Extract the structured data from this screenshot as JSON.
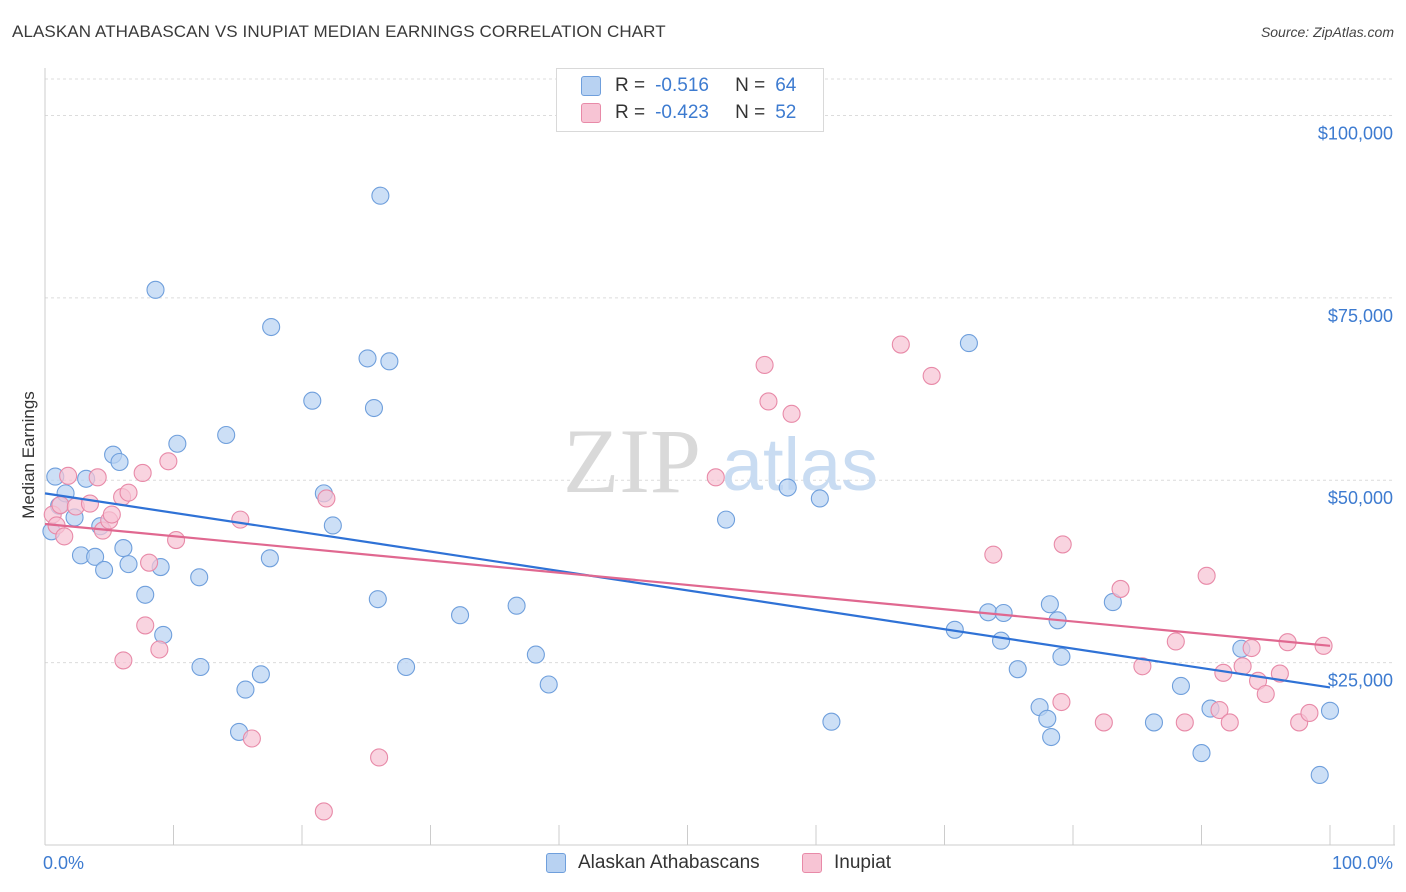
{
  "title": "ALASKAN ATHABASCAN VS INUPIAT MEDIAN EARNINGS CORRELATION CHART",
  "source": "Source: ZipAtlas.com",
  "watermark": {
    "zip": "ZIP",
    "atlas": "atlas"
  },
  "legend": {
    "series1": {
      "r_label": "R =",
      "r_value": "-0.516",
      "n_label": "N =",
      "n_value": "64"
    },
    "series2": {
      "r_label": "R =",
      "r_value": "-0.423",
      "n_label": "N =",
      "n_value": "52"
    }
  },
  "bottom_legend": {
    "series1": "Alaskan Athabascans",
    "series2": "Inupiat"
  },
  "colors": {
    "blue_fill": "#b8d2f2",
    "blue_edge": "#6f9fdc",
    "blue_line": "#2f72d6",
    "pink_fill": "#f7c4d4",
    "pink_edge": "#e88aa8",
    "pink_line": "#e06890",
    "accent_text": "#3d7bd0"
  },
  "chart_data": {
    "type": "scatter",
    "title": "ALASKAN ATHABASCAN VS INUPIAT MEDIAN EARNINGS CORRELATION CHART",
    "xlabel": "",
    "ylabel": "Median Earnings",
    "xlim": [
      0,
      100
    ],
    "ylim": [
      0,
      105000
    ],
    "x_tick_labels": [
      "0.0%",
      "100.0%"
    ],
    "y_ticks": [
      25000,
      50000,
      75000,
      100000
    ],
    "y_tick_labels": [
      "$25,000",
      "$50,000",
      "$75,000",
      "$100,000"
    ],
    "series": [
      {
        "name": "Alaskan Athabascans",
        "r": -0.516,
        "n": 64,
        "trend": {
          "x": [
            0,
            100
          ],
          "y": [
            48200,
            21600
          ]
        },
        "points": [
          [
            0.5,
            43000
          ],
          [
            0.8,
            50500
          ],
          [
            1.1,
            46500
          ],
          [
            1.6,
            48200
          ],
          [
            2.3,
            44900
          ],
          [
            2.8,
            39700
          ],
          [
            3.2,
            50200
          ],
          [
            3.9,
            39500
          ],
          [
            4.3,
            43700
          ],
          [
            4.6,
            37700
          ],
          [
            5.3,
            53500
          ],
          [
            5.8,
            52500
          ],
          [
            6.1,
            40700
          ],
          [
            6.5,
            38500
          ],
          [
            7.8,
            34300
          ],
          [
            8.6,
            76100
          ],
          [
            9.0,
            38100
          ],
          [
            9.2,
            28800
          ],
          [
            10.3,
            55000
          ],
          [
            12.0,
            36700
          ],
          [
            12.1,
            24400
          ],
          [
            14.1,
            56200
          ],
          [
            15.1,
            15500
          ],
          [
            15.6,
            21300
          ],
          [
            16.8,
            23400
          ],
          [
            17.5,
            39300
          ],
          [
            17.6,
            71000
          ],
          [
            20.8,
            60900
          ],
          [
            21.7,
            48200
          ],
          [
            22.4,
            43800
          ],
          [
            25.1,
            66700
          ],
          [
            25.6,
            59900
          ],
          [
            25.9,
            33700
          ],
          [
            26.1,
            89000
          ],
          [
            26.8,
            66300
          ],
          [
            28.1,
            24400
          ],
          [
            32.3,
            31500
          ],
          [
            36.7,
            32800
          ],
          [
            38.2,
            26100
          ],
          [
            39.2,
            22000
          ],
          [
            53.0,
            44600
          ],
          [
            57.8,
            49000
          ],
          [
            60.3,
            47500
          ],
          [
            61.2,
            16900
          ],
          [
            70.8,
            29500
          ],
          [
            71.9,
            68800
          ],
          [
            73.4,
            31900
          ],
          [
            74.4,
            28000
          ],
          [
            74.6,
            31800
          ],
          [
            75.7,
            24100
          ],
          [
            77.4,
            18900
          ],
          [
            78.0,
            17300
          ],
          [
            78.2,
            33000
          ],
          [
            78.3,
            14800
          ],
          [
            78.8,
            30800
          ],
          [
            79.1,
            25800
          ],
          [
            83.1,
            33300
          ],
          [
            86.3,
            16800
          ],
          [
            88.4,
            21800
          ],
          [
            90.0,
            12600
          ],
          [
            90.7,
            18700
          ],
          [
            93.1,
            26900
          ],
          [
            99.2,
            9600
          ],
          [
            100.0,
            18400
          ]
        ]
      },
      {
        "name": "Inupiat",
        "r": -0.423,
        "n": 52,
        "trend": {
          "x": [
            0,
            100
          ],
          "y": [
            44000,
            27300
          ]
        },
        "points": [
          [
            0.6,
            45300
          ],
          [
            0.9,
            43800
          ],
          [
            1.2,
            46600
          ],
          [
            1.5,
            42300
          ],
          [
            1.8,
            50600
          ],
          [
            2.4,
            46400
          ],
          [
            3.5,
            46800
          ],
          [
            4.1,
            50400
          ],
          [
            4.5,
            43100
          ],
          [
            5.0,
            44500
          ],
          [
            5.2,
            45300
          ],
          [
            6.0,
            47700
          ],
          [
            6.1,
            25300
          ],
          [
            6.5,
            48300
          ],
          [
            7.6,
            51000
          ],
          [
            7.8,
            30100
          ],
          [
            8.1,
            38700
          ],
          [
            8.9,
            26800
          ],
          [
            9.6,
            52600
          ],
          [
            10.2,
            41800
          ],
          [
            15.2,
            44600
          ],
          [
            16.1,
            14600
          ],
          [
            21.7,
            4600
          ],
          [
            21.9,
            47500
          ],
          [
            26.0,
            12000
          ],
          [
            52.2,
            50400
          ],
          [
            56.0,
            65800
          ],
          [
            56.3,
            60800
          ],
          [
            58.1,
            59100
          ],
          [
            66.6,
            68600
          ],
          [
            69.0,
            64300
          ],
          [
            73.8,
            39800
          ],
          [
            79.1,
            19600
          ],
          [
            79.2,
            41200
          ],
          [
            82.4,
            16800
          ],
          [
            83.7,
            35100
          ],
          [
            85.4,
            24500
          ],
          [
            88.0,
            27900
          ],
          [
            88.7,
            16800
          ],
          [
            90.4,
            36900
          ],
          [
            91.4,
            18500
          ],
          [
            91.7,
            23600
          ],
          [
            92.2,
            16800
          ],
          [
            93.2,
            24500
          ],
          [
            93.9,
            27000
          ],
          [
            94.4,
            22500
          ],
          [
            95.0,
            20700
          ],
          [
            96.1,
            23500
          ],
          [
            96.7,
            27800
          ],
          [
            97.6,
            16800
          ],
          [
            98.4,
            18100
          ],
          [
            99.5,
            27300
          ]
        ]
      }
    ]
  }
}
